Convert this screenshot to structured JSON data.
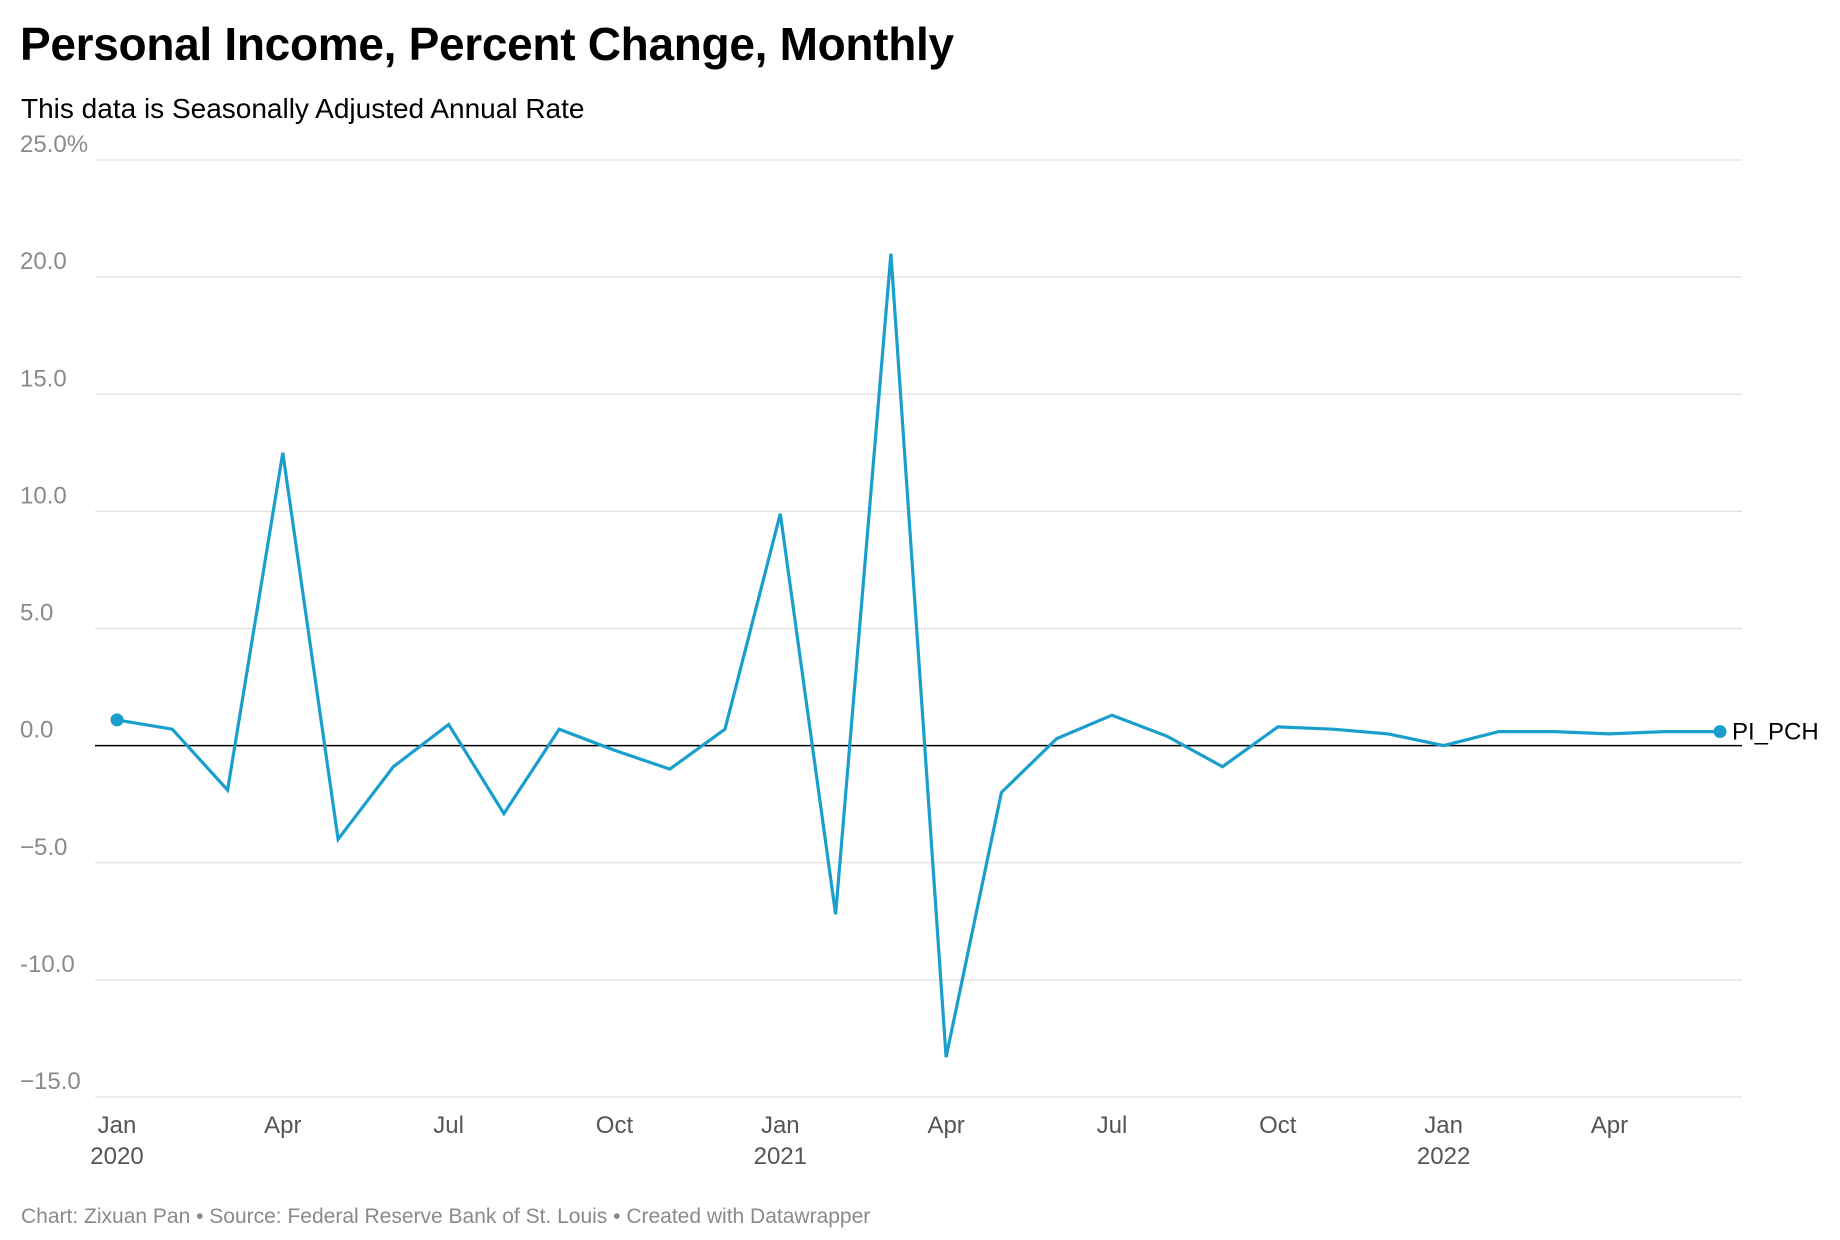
{
  "title": "Personal Income, Percent Change, Monthly",
  "subtitle": "This data is Seasonally Adjusted Annual Rate",
  "footer": "Chart: Zixuan Pan • Source: Federal Reserve Bank of St. Louis • Created with Datawrapper",
  "colors": {
    "line": "#1a9fcc",
    "grid": "#e0e0e0",
    "zero_line": "#000000",
    "tick_label": "#8a8a8a"
  },
  "chart_data": {
    "type": "line",
    "title": "Personal Income, Percent Change, Monthly",
    "subtitle": "This data is Seasonally Adjusted Annual Rate",
    "xlabel": "",
    "ylabel": "",
    "ylim": [
      -15,
      25
    ],
    "grid": true,
    "legend": "direct label at line end",
    "y_ticks": [
      {
        "value": 25,
        "label": "25.0%"
      },
      {
        "value": 20,
        "label": "20.0"
      },
      {
        "value": 15,
        "label": "15.0"
      },
      {
        "value": 10,
        "label": "10.0"
      },
      {
        "value": 5,
        "label": "5.0"
      },
      {
        "value": 0,
        "label": "0.0"
      },
      {
        "value": -5,
        "label": "−5.0"
      },
      {
        "value": -10,
        "label": "-10.0"
      },
      {
        "value": -15,
        "label": "−15.0"
      }
    ],
    "x_ticks": [
      {
        "date": "2020-01",
        "label": "Jan",
        "year": "2020"
      },
      {
        "date": "2020-04",
        "label": "Apr",
        "year": ""
      },
      {
        "date": "2020-07",
        "label": "Jul",
        "year": ""
      },
      {
        "date": "2020-10",
        "label": "Oct",
        "year": ""
      },
      {
        "date": "2021-01",
        "label": "Jan",
        "year": "2021"
      },
      {
        "date": "2021-04",
        "label": "Apr",
        "year": ""
      },
      {
        "date": "2021-07",
        "label": "Jul",
        "year": ""
      },
      {
        "date": "2021-10",
        "label": "Oct",
        "year": ""
      },
      {
        "date": "2022-01",
        "label": "Jan",
        "year": "2022"
      },
      {
        "date": "2022-04",
        "label": "Apr",
        "year": ""
      }
    ],
    "x_range": [
      "2020-01",
      "2022-07"
    ],
    "series": [
      {
        "name": "PI_PCH",
        "x": [
          "2020-01",
          "2020-02",
          "2020-03",
          "2020-04",
          "2020-05",
          "2020-06",
          "2020-07",
          "2020-08",
          "2020-09",
          "2020-10",
          "2020-11",
          "2020-12",
          "2021-01",
          "2021-02",
          "2021-03",
          "2021-04",
          "2021-05",
          "2021-06",
          "2021-07",
          "2021-08",
          "2021-09",
          "2021-10",
          "2021-11",
          "2021-12",
          "2022-01",
          "2022-02",
          "2022-03",
          "2022-04",
          "2022-05",
          "2022-06"
        ],
        "values": [
          1.1,
          0.7,
          -1.9,
          12.5,
          -4.0,
          -0.9,
          0.9,
          -2.9,
          0.7,
          -0.2,
          -1.0,
          0.7,
          9.9,
          -7.2,
          21.0,
          -13.3,
          -2.0,
          0.3,
          1.3,
          0.4,
          -0.9,
          0.8,
          0.7,
          0.5,
          0.0,
          0.6,
          0.6,
          0.5,
          0.6,
          0.6
        ]
      }
    ]
  }
}
